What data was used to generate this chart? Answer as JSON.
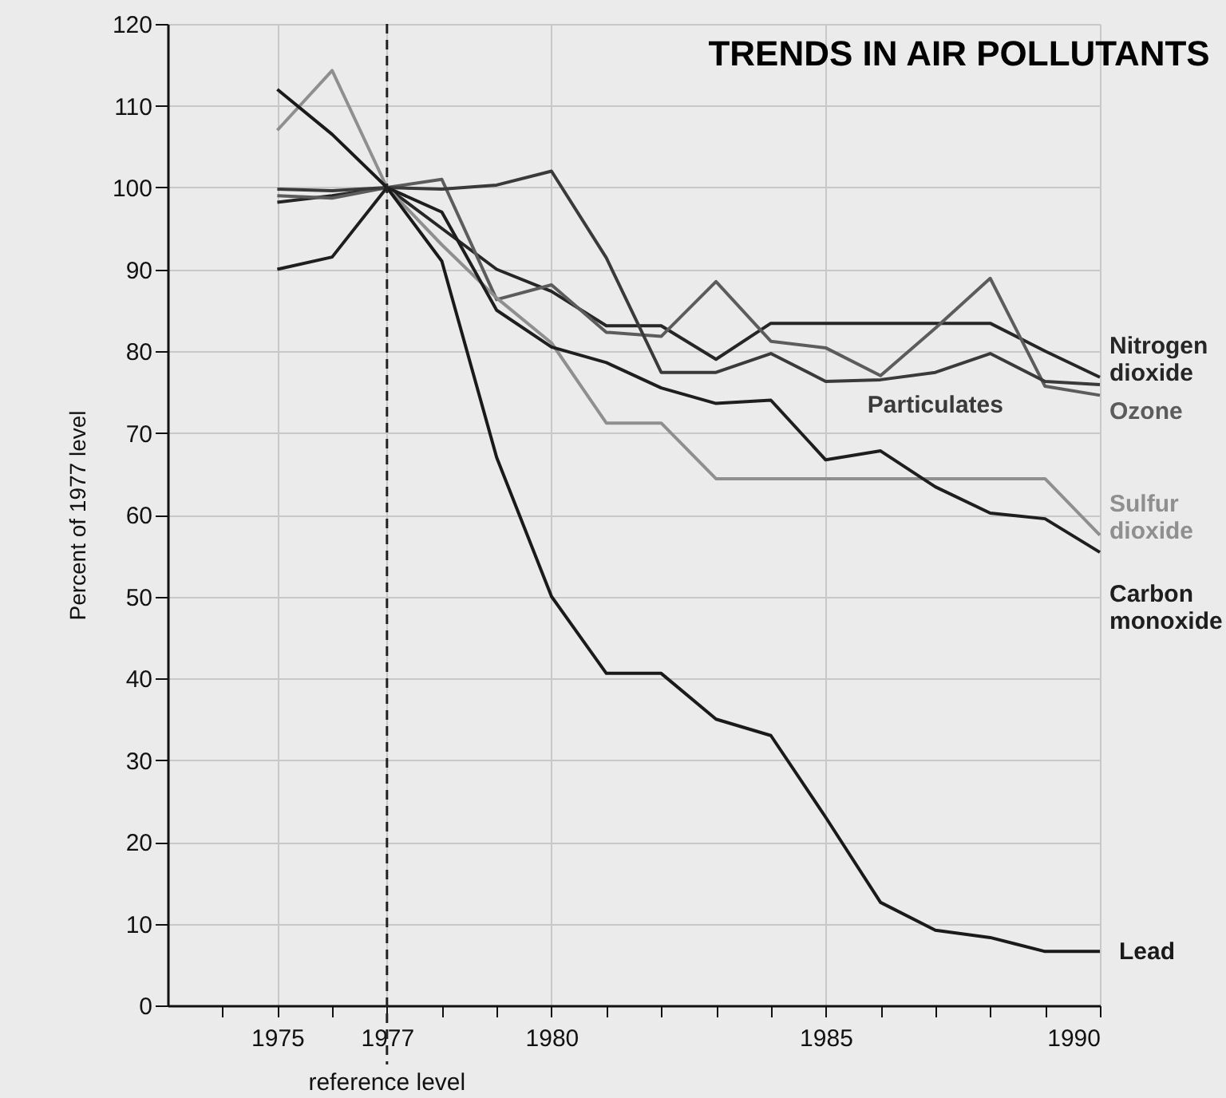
{
  "chart_data": {
    "type": "line",
    "title": "TRENDS IN AIR POLLUTANTS",
    "ylabel": "Percent of 1977 level",
    "x": [
      1975,
      1976,
      1977,
      1978,
      1979,
      1980,
      1981,
      1982,
      1983,
      1984,
      1985,
      1986,
      1987,
      1988,
      1989,
      1990
    ],
    "series": [
      {
        "name": "Nitrogen dioxide",
        "color": "#262626",
        "values": [
          98.2,
          99,
          100,
          95,
          90,
          87.3,
          83.1,
          83.1,
          79,
          83.4,
          83.4,
          83.4,
          83.4,
          83.4,
          80,
          76.8
        ]
      },
      {
        "name": "Ozone",
        "color": "#5c5c5c",
        "values": [
          99,
          98.7,
          100,
          101,
          86.3,
          88.1,
          82.3,
          81.8,
          88.5,
          81.2,
          80.4,
          77,
          82.8,
          88.9,
          75.7,
          74.6
        ]
      },
      {
        "name": "Particulates",
        "color": "#3a3a3a",
        "values": [
          99.8,
          99.6,
          100,
          99.8,
          100.3,
          102,
          91.4,
          77.4,
          77.4,
          79.7,
          76.3,
          76.5,
          77.4,
          79.7,
          76.3,
          75.9
        ]
      },
      {
        "name": "Sulfur dioxide",
        "color": "#8f8f8f",
        "values": [
          107,
          114.3,
          100,
          93,
          86.5,
          81,
          71.2,
          71.2,
          64.4,
          64.4,
          64.4,
          64.4,
          64.4,
          64.4,
          64.4,
          57.5
        ]
      },
      {
        "name": "Carbon monoxide",
        "color": "#1e1e1e",
        "values": [
          90,
          91.5,
          100,
          97,
          85,
          80.5,
          78.6,
          75.5,
          73.6,
          74,
          66.7,
          67.8,
          63.4,
          60.2,
          59.5,
          55.4
        ]
      },
      {
        "name": "Lead",
        "color": "#1a1a1a",
        "values": [
          112,
          106.5,
          100,
          91,
          67,
          50,
          40.6,
          40.6,
          35,
          33,
          23,
          12.6,
          9.2,
          8.3,
          6.6,
          6.6
        ]
      }
    ],
    "xlim": [
      1973,
      1990
    ],
    "xticks": [
      {
        "value": 1974,
        "label": null
      },
      1975,
      {
        "value": 1976,
        "label": null
      },
      1977,
      {
        "value": 1978,
        "label": null
      },
      {
        "value": 1979,
        "label": null
      },
      1980,
      {
        "value": 1981,
        "label": null
      },
      {
        "value": 1982,
        "label": null
      },
      {
        "value": 1983,
        "label": null
      },
      {
        "value": 1984,
        "label": null
      },
      1985,
      {
        "value": 1986,
        "label": null
      },
      {
        "value": 1987,
        "label": null
      },
      {
        "value": 1988,
        "label": null
      },
      {
        "value": 1989,
        "label": null
      },
      1990
    ],
    "ylim": [
      0,
      120
    ],
    "yticks": [
      0,
      10,
      20,
      30,
      40,
      50,
      60,
      70,
      80,
      90,
      100,
      110,
      120
    ],
    "ref_lines": [
      {
        "axis": "x",
        "value": 1977,
        "label": "reference level",
        "line_style": "dashed",
        "color": "#222222"
      }
    ],
    "grid": true,
    "legend": false,
    "marker": "none",
    "line_style": "solid"
  }
}
